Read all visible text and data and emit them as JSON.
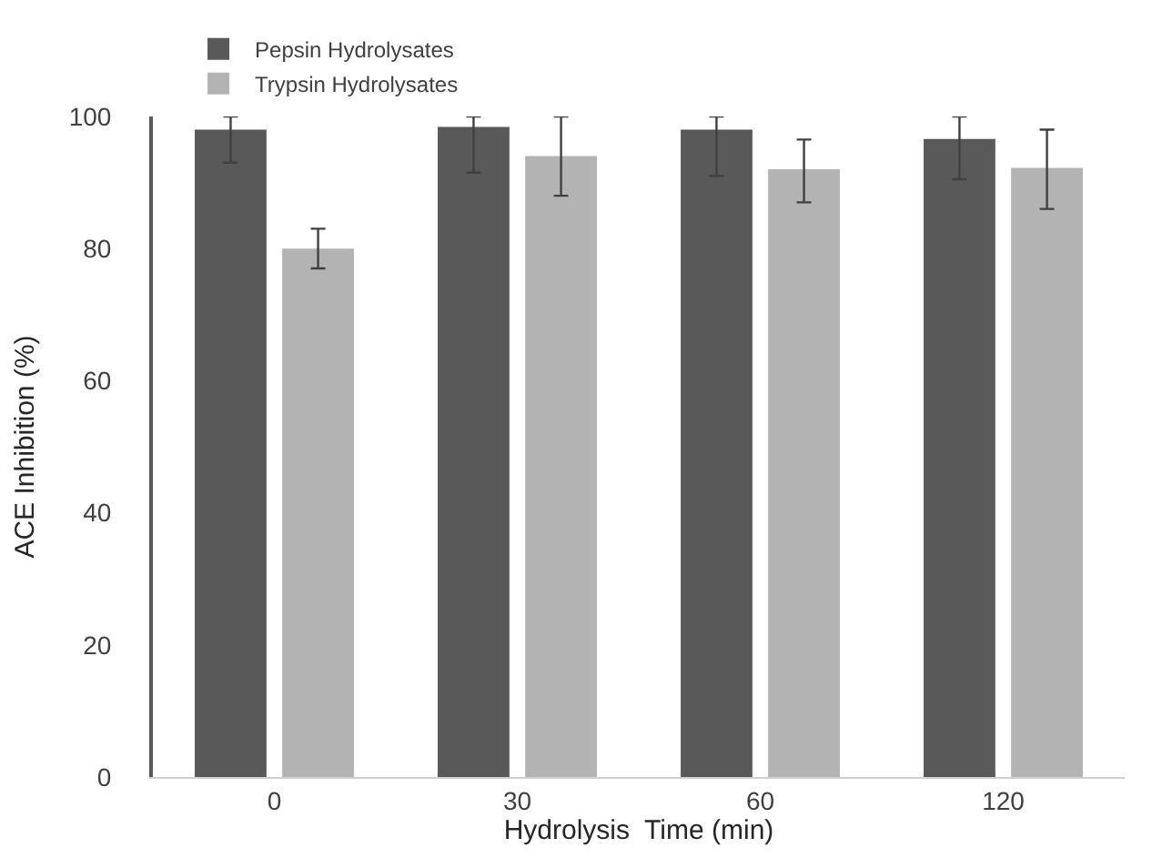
{
  "chart_data": {
    "type": "bar",
    "xlabel": "Hydrolysis  Time (min)",
    "ylabel": "ACE Inhibition (%)",
    "categories": [
      "0",
      "30",
      "60",
      "120"
    ],
    "series": [
      {
        "name": "Pepsin Hydrolysates",
        "color": "#595959",
        "values": [
          98,
          98.4,
          98,
          96.6
        ],
        "errors": [
          [
            93,
            100
          ],
          [
            91.5,
            100
          ],
          [
            91,
            100
          ],
          [
            90.5,
            100
          ]
        ]
      },
      {
        "name": "Trypsin Hydrolysates",
        "color": "#b3b3b3",
        "values": [
          80,
          94,
          92,
          92.2
        ],
        "errors": [
          [
            77,
            83
          ],
          [
            88,
            100
          ],
          [
            87,
            96.5
          ],
          [
            86,
            98
          ]
        ]
      }
    ],
    "ylim": [
      0,
      100
    ],
    "yticks": [
      0,
      20,
      40,
      60,
      80,
      100
    ],
    "legend": "top left"
  }
}
